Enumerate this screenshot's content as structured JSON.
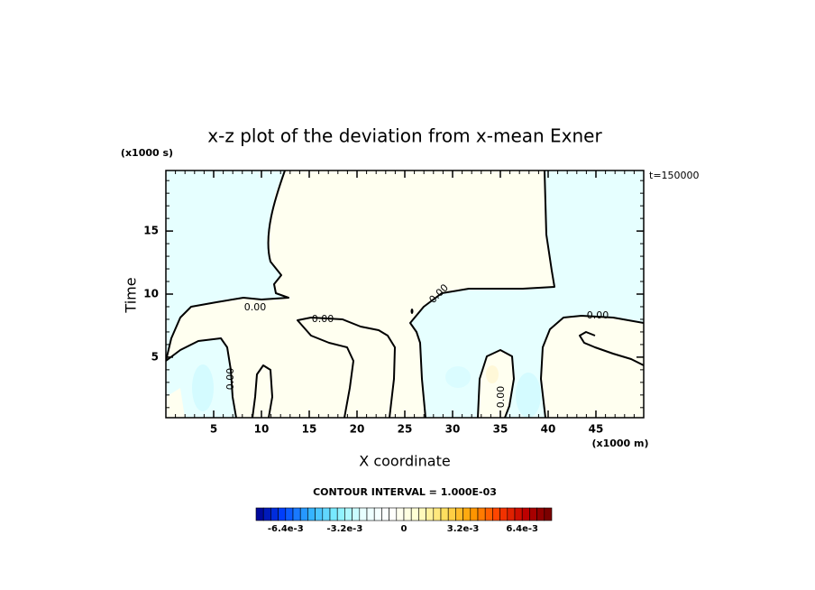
{
  "chart_data": {
    "type": "contour",
    "title": "x-z plot of the deviation from x-mean Exner",
    "time_label": "t=150000",
    "x_label": "X coordinate",
    "y_label": "Time",
    "x_unit": "(x1000 m)",
    "y_unit": "(x1000 s)",
    "xlim": [
      0,
      50
    ],
    "ylim": [
      0.2,
      19.8
    ],
    "xticks": [
      5,
      10,
      15,
      20,
      25,
      30,
      35,
      40,
      45
    ],
    "yticks": [
      5,
      10,
      15
    ],
    "contour_labels": [
      "0.00",
      "0.00",
      "0.00",
      "0.00",
      "0.00",
      "0.00"
    ],
    "contour_interval": "CONTOUR INTERVAL = 1.000E-03",
    "colorbar": {
      "lim": [
        -0.008,
        0.008
      ],
      "step": 0.0004,
      "colors": [
        "#00008c",
        "#0040ff",
        "#30b0ff",
        "#80f0ff",
        "#e8ffff",
        "#ffffff",
        "#ffffd0",
        "#ffe060",
        "#ffa000",
        "#ff4000",
        "#c00000",
        "#700000"
      ],
      "ticks": [
        {
          "value": -0.0064,
          "label": "-6.4e-3"
        },
        {
          "value": -0.0032,
          "label": "-3.2e-3"
        },
        0,
        {
          "value": 0.0032,
          "label": "3.2e-3"
        },
        {
          "value": 0.0064,
          "label": "6.4e-3"
        }
      ]
    }
  }
}
